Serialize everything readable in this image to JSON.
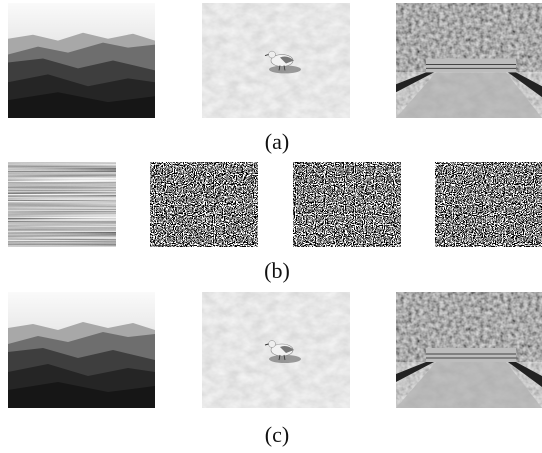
{
  "figure": {
    "captions": [
      "(a)",
      "(b)",
      "(c)"
    ]
  }
}
